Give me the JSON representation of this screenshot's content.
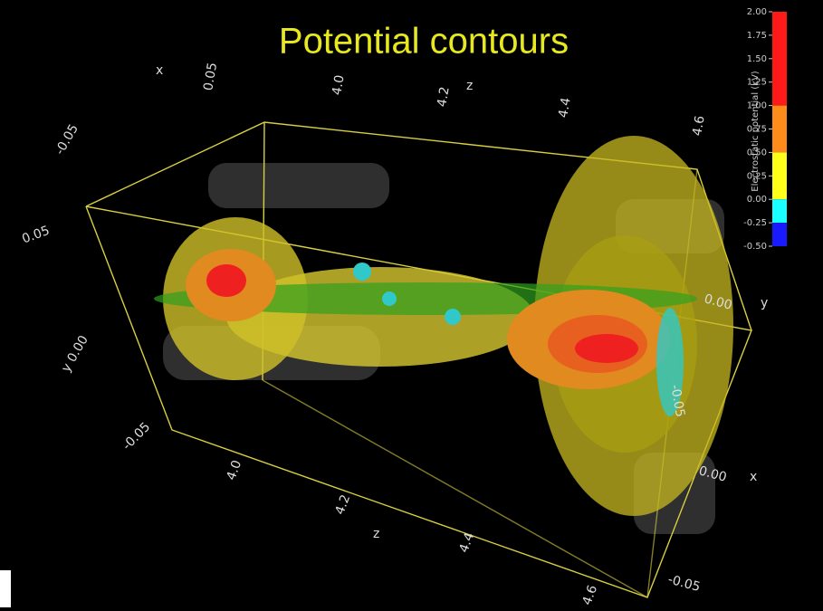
{
  "title": "Potential contours",
  "colorbar": {
    "label": "Electrostatic potential (kV)",
    "ticks": [
      {
        "value": 2,
        "label": "2.00"
      },
      {
        "value": 1.75,
        "label": "1.75"
      },
      {
        "value": 1.5,
        "label": "1.50"
      },
      {
        "value": 1.25,
        "label": "1.25"
      },
      {
        "value": 1,
        "label": "1.00"
      },
      {
        "value": 0.75,
        "label": "0.75"
      },
      {
        "value": 0.5,
        "label": "0.50"
      },
      {
        "value": 0.25,
        "label": "0.25"
      },
      {
        "value": 0,
        "label": "0.00"
      },
      {
        "value": -0.25,
        "label": "-0.25"
      },
      {
        "value": -0.5,
        "label": "-0.50"
      }
    ],
    "segments": [
      {
        "from": 1,
        "to": 2,
        "color": "#ff1a1a"
      },
      {
        "from": 0.5,
        "to": 1,
        "color": "#ff8c1a"
      },
      {
        "from": 0,
        "to": 0.5,
        "color": "#ffff1a"
      },
      {
        "from": -0.25,
        "to": 0,
        "color": "#1affff"
      },
      {
        "from": -0.5,
        "to": -0.25,
        "color": "#1a1aff"
      }
    ]
  },
  "axis_labels": [
    "x",
    "0.05",
    "4.0",
    "4.2",
    "z",
    "4.4",
    "4.6",
    "-0.05",
    "0.05",
    "y 0.00",
    "-0.05",
    "4.0",
    "4.2",
    "z",
    "4.4",
    "4.6",
    "0.00",
    "y",
    "-0.05",
    "0.00",
    "x",
    "-0.05"
  ]
}
